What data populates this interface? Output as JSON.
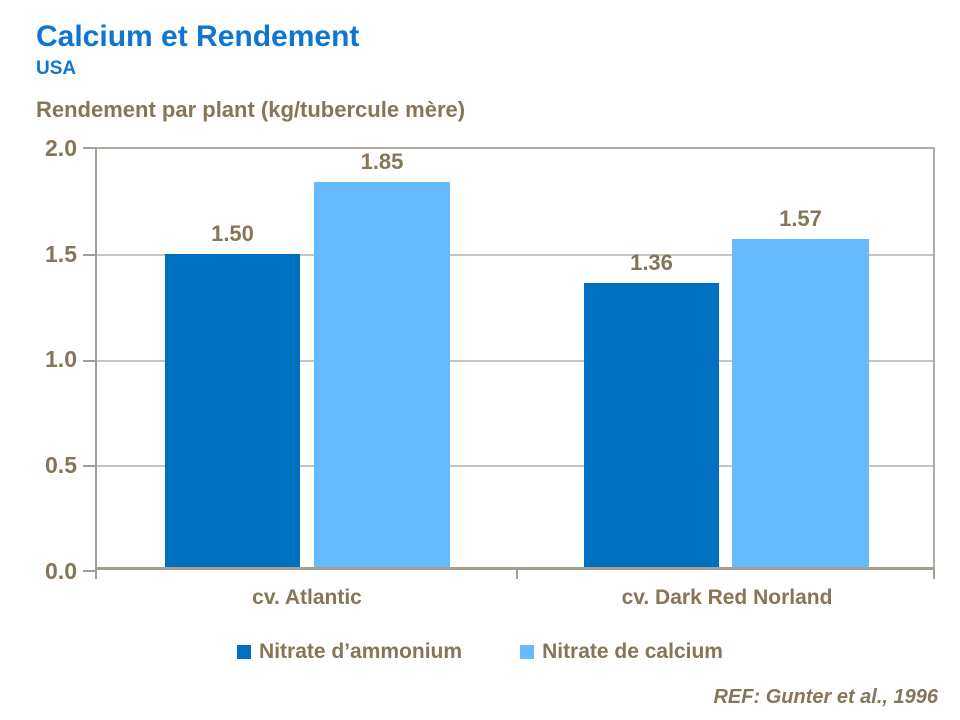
{
  "page": {
    "title": "Calcium et Rendement",
    "subtitle": "USA",
    "reference": "REF: Gunter et al., 1996"
  },
  "colors": {
    "title_blue": "#0E76D2",
    "text_brown": "#867559",
    "axis_line": "#A59E95",
    "gridline": "#C9C3BB",
    "series_dark_blue": "#0070C0",
    "series_light_blue": "#66BBFF"
  },
  "chart_data": {
    "type": "bar",
    "title": "Calcium et Rendement",
    "subtitle": "USA",
    "ylabel": "Rendement par plant (kg/tubercule mère)",
    "xlabel": "",
    "categories": [
      "cv. Atlantic",
      "cv. Dark Red Norland"
    ],
    "series": [
      {
        "name": "Nitrate d’ammonium",
        "color": "#0070C0",
        "values": [
          1.5,
          1.36
        ],
        "value_labels": [
          "1.50",
          "1.36"
        ]
      },
      {
        "name": "Nitrate de calcium",
        "color": "#66BBFF",
        "values": [
          1.85,
          1.57
        ],
        "value_labels": [
          "1.85",
          "1.57"
        ]
      }
    ],
    "ylim": [
      0.0,
      2.0
    ],
    "yticks": [
      "2.0",
      "1.5",
      "1.0",
      "0.5",
      "0.0"
    ],
    "grid": true,
    "legend_position": "bottom",
    "annotation": "REF: Gunter et al., 1996"
  }
}
